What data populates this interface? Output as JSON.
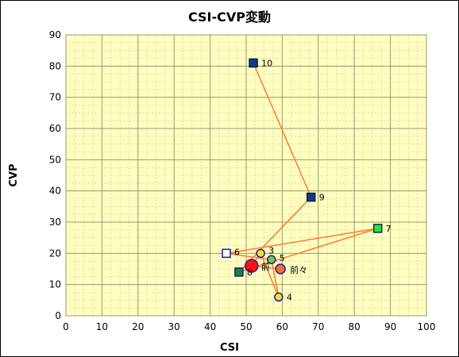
{
  "chart_data": {
    "type": "scatter",
    "title": "CSI-CVP変動",
    "xlabel": "CSI",
    "ylabel": "CVP",
    "xlim": [
      0,
      100
    ],
    "ylim": [
      0,
      90
    ],
    "x_ticks": [
      0,
      10,
      20,
      30,
      40,
      50,
      60,
      70,
      80,
      90,
      100
    ],
    "y_ticks": [
      0,
      10,
      20,
      30,
      40,
      50,
      60,
      70,
      80,
      90
    ],
    "grid": true,
    "plot_background": "#ffffc0",
    "line_color": "#ff7b2b",
    "points": [
      {
        "label": "前々",
        "x": 59.5,
        "y": 15,
        "shape": "circle",
        "fill": "#ff6a2a",
        "stroke": "#1a1ab0",
        "size": "medium"
      },
      {
        "label": "前",
        "x": 51.5,
        "y": 16,
        "shape": "circle",
        "fill": "#ff1010",
        "stroke": "#1a1ab0",
        "size": "large"
      },
      {
        "label": "3",
        "x": 54,
        "y": 20,
        "shape": "circle",
        "fill": "#ffe020",
        "stroke": "#1a1ab0",
        "size": "small"
      },
      {
        "label": "4",
        "x": 59,
        "y": 6,
        "shape": "circle",
        "fill": "#ffe020",
        "stroke": "#1a1ab0",
        "size": "small"
      },
      {
        "label": "5",
        "x": 57,
        "y": 18,
        "shape": "circle",
        "fill": "#80c830",
        "stroke": "#1a1ab0",
        "size": "small"
      },
      {
        "label": "6",
        "x": 44.5,
        "y": 20,
        "shape": "square",
        "fill": "#ffffff",
        "stroke": "#1a1ab0",
        "size": "small"
      },
      {
        "label": "7",
        "x": 86.5,
        "y": 28,
        "shape": "square",
        "fill": "#22ee22",
        "stroke": "#1a1a80",
        "size": "small"
      },
      {
        "label": "8",
        "x": 48,
        "y": 14,
        "shape": "square",
        "fill": "#138a30",
        "stroke": "#1a1a80",
        "size": "small"
      },
      {
        "label": "9",
        "x": 68,
        "y": 38,
        "shape": "square",
        "fill": "#123a8a",
        "stroke": "#0a1a50",
        "size": "small"
      },
      {
        "label": "10",
        "x": 52,
        "y": 81,
        "shape": "square",
        "fill": "#123a8a",
        "stroke": "#0a1a50",
        "size": "small"
      }
    ]
  }
}
